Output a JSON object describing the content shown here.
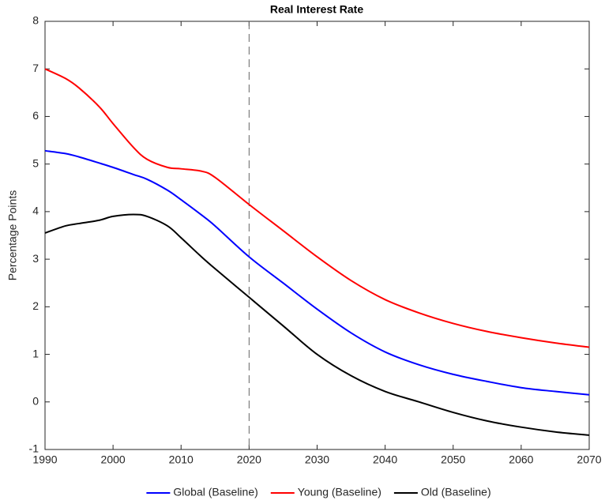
{
  "chart_data": {
    "type": "line",
    "title": "Real Interest Rate",
    "ylabel": "Percentage Points",
    "x": [
      1990,
      1993,
      1995,
      1998,
      2000,
      2003,
      2005,
      2008,
      2010,
      2013,
      2015,
      2020,
      2025,
      2030,
      2035,
      2040,
      2045,
      2050,
      2055,
      2060,
      2065,
      2070
    ],
    "series": [
      {
        "name": "Global (Baseline)",
        "color": "#0000ff",
        "values": [
          5.28,
          5.22,
          5.15,
          5.02,
          4.93,
          4.78,
          4.68,
          4.45,
          4.25,
          3.93,
          3.7,
          3.05,
          2.5,
          1.95,
          1.45,
          1.05,
          0.78,
          0.58,
          0.43,
          0.3,
          0.22,
          0.15
        ]
      },
      {
        "name": "Young (Baseline)",
        "color": "#ff0000",
        "values": [
          7.0,
          6.8,
          6.6,
          6.2,
          5.85,
          5.35,
          5.1,
          4.93,
          4.9,
          4.85,
          4.72,
          4.15,
          3.6,
          3.05,
          2.55,
          2.15,
          1.87,
          1.65,
          1.48,
          1.35,
          1.24,
          1.15
        ]
      },
      {
        "name": "Old (Baseline)",
        "color": "#000000",
        "values": [
          3.55,
          3.7,
          3.75,
          3.82,
          3.9,
          3.94,
          3.9,
          3.7,
          3.45,
          3.05,
          2.8,
          2.2,
          1.6,
          1.0,
          0.55,
          0.22,
          0.0,
          -0.22,
          -0.4,
          -0.53,
          -0.63,
          -0.7
        ]
      }
    ],
    "vline": 2020,
    "xlim": [
      1990,
      2070
    ],
    "xticks": [
      1990,
      2000,
      2010,
      2020,
      2030,
      2040,
      2050,
      2060,
      2070
    ],
    "ylim": [
      -1,
      8
    ],
    "yticks": [
      -1,
      0,
      1,
      2,
      3,
      4,
      5,
      6,
      7,
      8
    ],
    "grid": false,
    "legend": "bottom"
  }
}
